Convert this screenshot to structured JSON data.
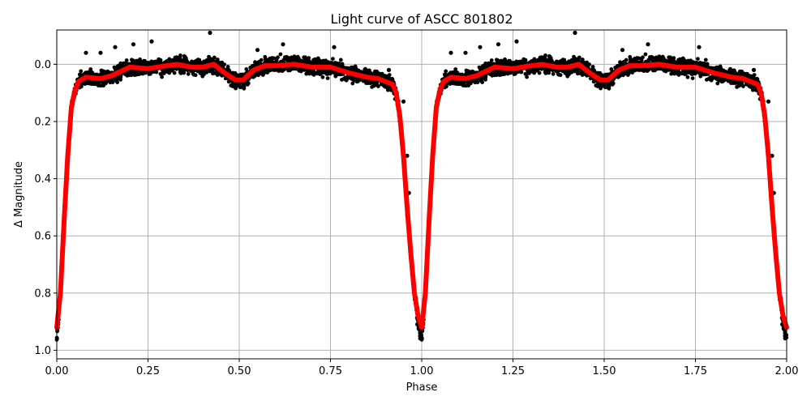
{
  "chart_data": {
    "type": "scatter",
    "title": "Light curve of ASCC 801802",
    "xlabel": "Phase",
    "ylabel": "Δ Magnitude",
    "xlim": [
      0.0,
      2.0
    ],
    "ylim": [
      1.03,
      -0.12
    ],
    "y_inverted": true,
    "grid": true,
    "legend": null,
    "x_ticks": [
      "0.00",
      "0.25",
      "0.50",
      "0.75",
      "1.00",
      "1.25",
      "1.50",
      "1.75",
      "2.00"
    ],
    "y_ticks": [
      "0.0",
      "0.2",
      "0.4",
      "0.6",
      "0.8",
      "1.0"
    ],
    "series": [
      {
        "name": "observations",
        "kind": "scatter",
        "color": "#000000",
        "note": "dense black points scattered ~±0.03 mag around the model, repeated over two phase cycles"
      },
      {
        "name": "model",
        "kind": "line",
        "color": "#ff0000",
        "phase": [
          0.0,
          0.01,
          0.02,
          0.03,
          0.04,
          0.05,
          0.06,
          0.08,
          0.12,
          0.15,
          0.2,
          0.25,
          0.3,
          0.33,
          0.37,
          0.4,
          0.43,
          0.46,
          0.49,
          0.51,
          0.54,
          0.57,
          0.6,
          0.65,
          0.7,
          0.75,
          0.8,
          0.85,
          0.88,
          0.92,
          0.93,
          0.94,
          0.95,
          0.96,
          0.97,
          0.98,
          0.99,
          1.0
        ],
        "values": [
          0.92,
          0.8,
          0.55,
          0.32,
          0.15,
          0.09,
          0.06,
          0.045,
          0.05,
          0.04,
          0.01,
          0.015,
          0.005,
          0.0,
          0.01,
          0.01,
          0.0,
          0.03,
          0.055,
          0.055,
          0.02,
          0.005,
          0.005,
          0.0,
          0.01,
          0.01,
          0.03,
          0.045,
          0.05,
          0.07,
          0.1,
          0.18,
          0.32,
          0.5,
          0.66,
          0.8,
          0.88,
          0.92
        ]
      }
    ],
    "outliers": [
      {
        "phase": 0.42,
        "mag": -0.11
      },
      {
        "phase": 0.42,
        "mag": -0.02
      },
      {
        "phase": 0.26,
        "mag": -0.08
      },
      {
        "phase": 0.21,
        "mag": -0.07
      },
      {
        "phase": 0.12,
        "mag": -0.04
      },
      {
        "phase": 0.08,
        "mag": -0.04
      },
      {
        "phase": 0.16,
        "mag": -0.06
      },
      {
        "phase": 0.55,
        "mag": -0.05
      },
      {
        "phase": 0.62,
        "mag": -0.07
      },
      {
        "phase": 0.76,
        "mag": -0.06
      },
      {
        "phase": 0.95,
        "mag": 0.13
      },
      {
        "phase": 0.965,
        "mag": 0.45
      },
      {
        "phase": 0.96,
        "mag": 0.32
      },
      {
        "phase": 0.91,
        "mag": 0.02
      }
    ]
  }
}
